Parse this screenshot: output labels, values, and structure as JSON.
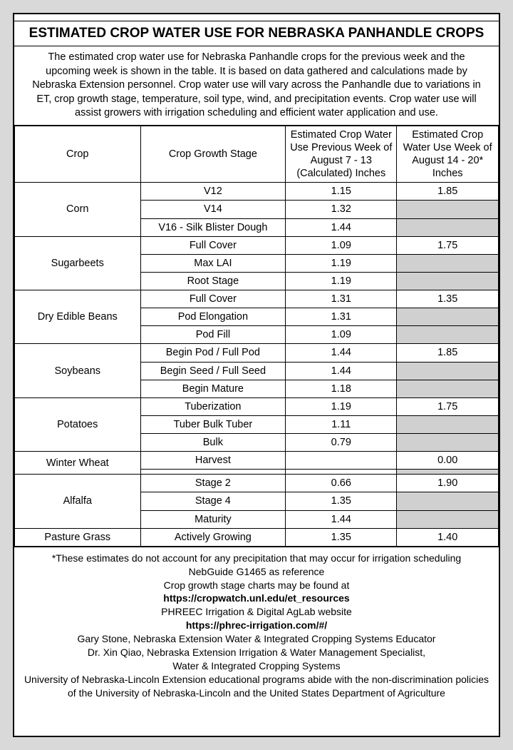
{
  "colors": {
    "page_bg": "#d9d9d9",
    "sheet_bg": "#ffffff",
    "border": "#000000",
    "shaded": "#d0d0d0"
  },
  "typography": {
    "title_fontsize": 19,
    "body_fontsize": 14.5,
    "footer_fontsize": 14,
    "font_family": "Arial"
  },
  "title": "ESTIMATED CROP WATER USE FOR NEBRASKA PANHANDLE CROPS",
  "intro": "The estimated crop water use for Nebraska Panhandle crops for the previous week and the upcoming week is shown in the table.  It is based on data gathered and calculations made by Nebraska Extension personnel.  Crop water use will vary across the Panhandle due to variations in ET, crop growth stage, temperature, soil type, wind, and precipitation events.  Crop water use will assist growers with irrigation scheduling and efficient water application and use.",
  "headers": {
    "crop": "Crop",
    "stage": "Crop Growth Stage",
    "prev": "Estimated Crop Water Use Previous Week of August 7 - 13 (Calculated) Inches",
    "next": "Estimated Crop Water Use Week of August 14 - 20* Inches"
  },
  "groups": [
    {
      "crop": "Corn",
      "rows": [
        {
          "stage": "V12",
          "prev": "1.15",
          "next": "1.85"
        },
        {
          "stage": "V14",
          "prev": "1.32",
          "shaded": true
        },
        {
          "stage": "V16 - Silk Blister Dough",
          "prev": "1.44",
          "shaded": true
        }
      ]
    },
    {
      "crop": "Sugarbeets",
      "rows": [
        {
          "stage": "Full Cover",
          "prev": "1.09",
          "next": "1.75"
        },
        {
          "stage": "Max LAI",
          "prev": "1.19",
          "shaded": true
        },
        {
          "stage": "Root Stage",
          "prev": "1.19",
          "shaded": true
        }
      ]
    },
    {
      "crop": "Dry Edible Beans",
      "rows": [
        {
          "stage": "Full Cover",
          "prev": "1.31",
          "next": "1.35"
        },
        {
          "stage": "Pod Elongation",
          "prev": "1.31",
          "shaded": true
        },
        {
          "stage": "Pod Fill",
          "prev": "1.09",
          "shaded": true
        }
      ]
    },
    {
      "crop": "Soybeans",
      "rows": [
        {
          "stage": "Begin Pod / Full Pod",
          "prev": "1.44",
          "next": "1.85"
        },
        {
          "stage": "Begin Seed / Full Seed",
          "prev": "1.44",
          "shaded": true
        },
        {
          "stage": "Begin Mature",
          "prev": "1.18",
          "shaded": true
        }
      ]
    },
    {
      "crop": "Potatoes",
      "rows": [
        {
          "stage": "Tuberization",
          "prev": "1.19",
          "next": "1.75"
        },
        {
          "stage": "Tuber Bulk Tuber",
          "prev": "1.11",
          "shaded": true
        },
        {
          "stage": "Bulk",
          "prev": "0.79",
          "shaded": true
        }
      ]
    },
    {
      "crop": "Winter Wheat",
      "rows": [
        {
          "stage": "Harvest",
          "prev": "",
          "next": "0.00"
        },
        {
          "stage": "",
          "prev": "",
          "shaded": true
        }
      ]
    },
    {
      "crop": "Alfalfa",
      "rows": [
        {
          "stage": "Stage 2",
          "prev": "0.66",
          "next": "1.90"
        },
        {
          "stage": "Stage 4",
          "prev": "1.35",
          "shaded": true
        },
        {
          "stage": "Maturity",
          "prev": "1.44",
          "shaded": true
        }
      ]
    },
    {
      "crop": "Pasture Grass",
      "rows": [
        {
          "stage": "Actively Growing",
          "prev": "1.35",
          "next": "1.40"
        }
      ]
    }
  ],
  "footer": {
    "l1": "*These estimates do not account for any precipitation that may occur for irrigation scheduling",
    "l2": "NebGuide G1465 as reference",
    "l3": "Crop growth stage charts may be found at",
    "l4": "https://cropwatch.unl.edu/et_resources",
    "l5": "PHREEC Irrigation & Digital AgLab website",
    "l6": "https://phrec-irrigation.com/#/",
    "l7": "Gary Stone, Nebraska Extension Water & Integrated Cropping Systems Educator",
    "l8": "Dr. Xin Qiao, Nebraska Extension Irrigation & Water Management Specialist,",
    "l9": "Water & Integrated Cropping Systems",
    "l10": "University of Nebraska-Lincoln Extension educational programs abide with the non-discrimination policies of the University of Nebraska-Lincoln and the United States Department of Agriculture"
  }
}
